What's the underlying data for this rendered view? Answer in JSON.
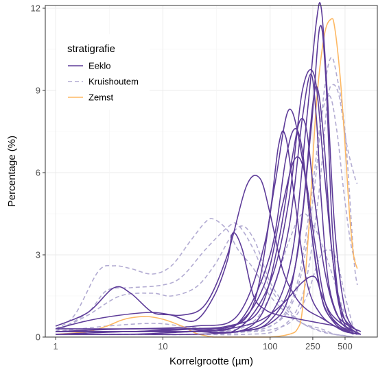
{
  "chart_data": {
    "type": "line",
    "xlabel": "Korrelgrootte (µm)",
    "ylabel": "Percentage (%)",
    "x_scale": "log10",
    "xlim": [
      0.8,
      1000
    ],
    "ylim": [
      0,
      12.1
    ],
    "x_ticks": [
      1,
      10,
      100,
      250,
      500
    ],
    "x_tick_labels": [
      "1",
      "10",
      "100",
      "250",
      "500"
    ],
    "y_ticks": [
      0,
      3,
      6,
      9,
      12
    ],
    "y_tick_labels": [
      "0",
      "3",
      "6",
      "9",
      "12"
    ],
    "grid": true,
    "legend": {
      "title": "stratigrafie",
      "position": "top-left",
      "entries": [
        {
          "label": "Eeklo",
          "color": "#5e3c99",
          "dash": "solid"
        },
        {
          "label": "Kruishoutem",
          "color": "#b2abd2",
          "dash": "dashed"
        },
        {
          "label": "Zemst",
          "color": "#fdb863",
          "dash": "solid"
        }
      ]
    },
    "series": [
      {
        "group": "Eeklo",
        "x": [
          1,
          2,
          3.5,
          5,
          8,
          12,
          20,
          30,
          40,
          45,
          55,
          70,
          90,
          120,
          160,
          220,
          300,
          400,
          500,
          700
        ],
        "y": [
          0.4,
          0.9,
          1.8,
          1.6,
          0.9,
          0.8,
          0.6,
          1.5,
          2.8,
          3.8,
          3.2,
          1.5,
          1.0,
          0.8,
          0.7,
          0.6,
          0.5,
          0.4,
          0.2,
          0.1
        ]
      },
      {
        "group": "Eeklo",
        "x": [
          1,
          2,
          4,
          8,
          15,
          25,
          40,
          60,
          80,
          100,
          130,
          170,
          220,
          300,
          400,
          500,
          700
        ],
        "y": [
          0.3,
          0.6,
          0.8,
          0.9,
          0.8,
          1.2,
          3.0,
          5.5,
          5.8,
          4.5,
          2.5,
          1.5,
          1.0,
          0.7,
          0.4,
          0.2,
          0.1
        ]
      },
      {
        "group": "Eeklo",
        "x": [
          1,
          5,
          15,
          35,
          70,
          110,
          150,
          200,
          250,
          300,
          350,
          450,
          600
        ],
        "y": [
          0.3,
          0.3,
          0.3,
          0.3,
          1.2,
          5.5,
          8.3,
          6.5,
          3.5,
          1.5,
          0.8,
          0.4,
          0.2
        ]
      },
      {
        "group": "Eeklo",
        "x": [
          1,
          5,
          20,
          50,
          100,
          150,
          200,
          260,
          320,
          380,
          450,
          600
        ],
        "y": [
          0.2,
          0.2,
          0.2,
          0.3,
          2.0,
          5.0,
          9.0,
          9.5,
          6.0,
          3.0,
          1.0,
          0.3
        ]
      },
      {
        "group": "Eeklo",
        "x": [
          1,
          5,
          20,
          50,
          100,
          160,
          220,
          270,
          300,
          340,
          400,
          500,
          650
        ],
        "y": [
          0.1,
          0.2,
          0.2,
          0.2,
          0.8,
          3.0,
          8.0,
          11.5,
          12.0,
          9.0,
          4.0,
          1.0,
          0.2
        ]
      },
      {
        "group": "Eeklo",
        "x": [
          1,
          5,
          20,
          50,
          100,
          170,
          240,
          290,
          330,
          380,
          450,
          550
        ],
        "y": [
          0.1,
          0.1,
          0.2,
          0.2,
          0.6,
          2.5,
          7.5,
          11.3,
          9.5,
          4.0,
          1.0,
          0.2
        ]
      },
      {
        "group": "Eeklo",
        "x": [
          1,
          5,
          20,
          50,
          100,
          140,
          170,
          200,
          240,
          300,
          400,
          600
        ],
        "y": [
          0.2,
          0.3,
          0.3,
          0.5,
          3.0,
          6.5,
          7.6,
          6.8,
          4.0,
          1.5,
          0.5,
          0.1
        ]
      },
      {
        "group": "Eeklo",
        "x": [
          1,
          5,
          20,
          50,
          90,
          120,
          140,
          170,
          220,
          300,
          450,
          650
        ],
        "y": [
          0.3,
          0.3,
          0.4,
          0.8,
          3.5,
          7.0,
          7.3,
          5.0,
          2.0,
          0.8,
          0.3,
          0.1
        ]
      },
      {
        "group": "Eeklo",
        "x": [
          1,
          5,
          15,
          40,
          80,
          120,
          160,
          190,
          220,
          260,
          320,
          400,
          500,
          700
        ],
        "y": [
          0.2,
          0.2,
          0.3,
          0.4,
          1.0,
          3.5,
          6.5,
          7.9,
          7.5,
          5.0,
          2.5,
          1.0,
          0.5,
          0.2
        ]
      },
      {
        "group": "Eeklo",
        "x": [
          1,
          5,
          20,
          60,
          100,
          150,
          200,
          240,
          270,
          300,
          350,
          450,
          600
        ],
        "y": [
          0.2,
          0.2,
          0.2,
          0.3,
          1.5,
          4.0,
          8.0,
          9.6,
          8.0,
          5.0,
          2.0,
          0.6,
          0.2
        ]
      },
      {
        "group": "Eeklo",
        "x": [
          1,
          5,
          15,
          40,
          80,
          130,
          200,
          260,
          300,
          350,
          400,
          500,
          700
        ],
        "y": [
          0.2,
          0.2,
          0.2,
          0.3,
          0.6,
          1.2,
          2.0,
          2.2,
          1.6,
          1.0,
          0.7,
          0.4,
          0.1
        ]
      },
      {
        "group": "Eeklo",
        "x": [
          1,
          5,
          20,
          50,
          100,
          150,
          200,
          250,
          280,
          320,
          380,
          480,
          650
        ],
        "y": [
          0.1,
          0.1,
          0.1,
          0.2,
          0.5,
          1.5,
          4.5,
          8.5,
          9.0,
          7.0,
          3.0,
          0.8,
          0.1
        ]
      },
      {
        "group": "Eeklo",
        "x": [
          1,
          5,
          20,
          50,
          90,
          130,
          170,
          210,
          260,
          330,
          450,
          650
        ],
        "y": [
          0.2,
          0.2,
          0.3,
          0.5,
          2.0,
          4.8,
          6.5,
          6.0,
          3.5,
          1.2,
          0.4,
          0.1
        ]
      },
      {
        "group": "Kruishoutem",
        "x": [
          1,
          1.5,
          2.5,
          3.5,
          5,
          8,
          12,
          18,
          25,
          30,
          40,
          50,
          70,
          100,
          150,
          200,
          260,
          320,
          400,
          500,
          600
        ],
        "y": [
          0.3,
          0.8,
          2.4,
          2.6,
          2.5,
          2.3,
          2.6,
          3.5,
          4.2,
          4.3,
          3.9,
          3.2,
          2.5,
          1.5,
          0.8,
          0.5,
          0.3,
          0.2,
          0.1,
          0.05,
          0.0
        ]
      },
      {
        "group": "Kruishoutem",
        "x": [
          1,
          2,
          3,
          5,
          10,
          15,
          25,
          40,
          50,
          70,
          100,
          150,
          200,
          300,
          400,
          500,
          600
        ],
        "y": [
          0.2,
          0.9,
          1.7,
          1.8,
          1.9,
          2.2,
          3.2,
          4.0,
          4.1,
          3.2,
          1.8,
          0.9,
          0.5,
          0.3,
          0.1,
          0.05,
          0.0
        ]
      },
      {
        "group": "Kruishoutem",
        "x": [
          1,
          2,
          4,
          8,
          12,
          20,
          30,
          50,
          70,
          100,
          150,
          200,
          300,
          400,
          600
        ],
        "y": [
          0.2,
          0.8,
          1.5,
          1.6,
          1.5,
          1.8,
          2.6,
          4.0,
          3.6,
          2.0,
          1.0,
          0.5,
          0.2,
          0.1,
          0.0
        ]
      },
      {
        "group": "Kruishoutem",
        "x": [
          1,
          5,
          20,
          60,
          100,
          150,
          200,
          260,
          320,
          370,
          420,
          500,
          600,
          650
        ],
        "y": [
          0.1,
          0.1,
          0.1,
          0.2,
          0.4,
          1.0,
          2.5,
          5.5,
          9.0,
          10.2,
          9.5,
          7.5,
          3.0,
          1.9
        ]
      },
      {
        "group": "Kruishoutem",
        "x": [
          1,
          5,
          20,
          60,
          120,
          200,
          280,
          340,
          380,
          440,
          520,
          620,
          650
        ],
        "y": [
          0.1,
          0.1,
          0.1,
          0.1,
          0.3,
          1.5,
          5.0,
          8.5,
          9.2,
          8.8,
          7.0,
          5.8,
          5.6
        ]
      },
      {
        "group": "Kruishoutem",
        "x": [
          1,
          5,
          20,
          60,
          120,
          180,
          240,
          300,
          360,
          420,
          480,
          560,
          620
        ],
        "y": [
          0.1,
          0.1,
          0.1,
          0.2,
          0.6,
          2.0,
          5.0,
          8.0,
          8.8,
          7.5,
          5.5,
          3.5,
          2.8
        ]
      },
      {
        "group": "Kruishoutem",
        "x": [
          1,
          5,
          20,
          60,
          100,
          150,
          200,
          260,
          330,
          400,
          480,
          560,
          620
        ],
        "y": [
          0.2,
          0.2,
          0.2,
          0.4,
          1.5,
          3.5,
          4.5,
          4.0,
          3.0,
          2.0,
          1.0,
          0.5,
          0.3
        ]
      },
      {
        "group": "Kruishoutem",
        "x": [
          1,
          3,
          8,
          15,
          25,
          40,
          70,
          110,
          160,
          220,
          300,
          400,
          500,
          600
        ],
        "y": [
          0.2,
          0.4,
          0.5,
          0.4,
          0.3,
          0.2,
          0.2,
          0.3,
          0.6,
          1.5,
          3.0,
          3.0,
          1.5,
          0.3
        ]
      },
      {
        "group": "Zemst",
        "x": [
          1,
          2,
          3,
          4,
          5,
          7,
          10,
          15,
          20,
          25,
          30,
          40,
          60,
          100,
          150,
          180,
          200,
          230,
          270,
          320,
          370,
          400,
          450,
          500,
          550,
          600,
          650
        ],
        "y": [
          0.1,
          0.2,
          0.4,
          0.6,
          0.7,
          0.75,
          0.65,
          0.4,
          0.15,
          0.05,
          0.0,
          0.0,
          0.0,
          0.0,
          0.1,
          0.3,
          1.0,
          4.0,
          8.5,
          11.0,
          11.6,
          11.3,
          9.5,
          7.0,
          4.5,
          3.0,
          2.5
        ]
      }
    ]
  }
}
